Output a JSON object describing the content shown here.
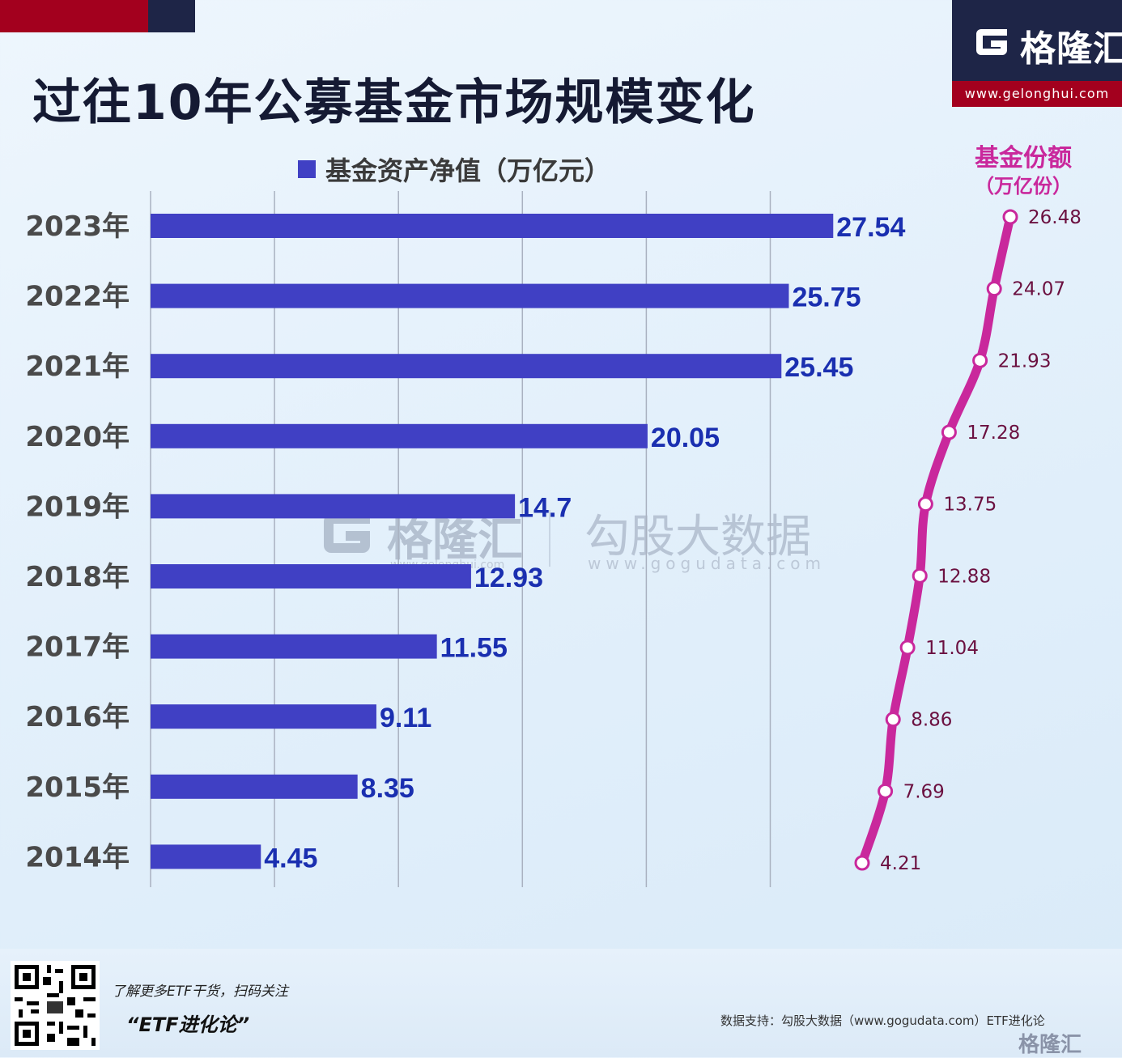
{
  "header": {
    "title": "过往10年公募基金市场规模变化",
    "brand": "格隆汇",
    "url": "www.gelonghui.com"
  },
  "watermark": {
    "brand": "格隆汇",
    "sub": "www.gelonghui.com",
    "brand2": "勾股大数据",
    "sub2": "www.gogudata.com"
  },
  "footer": {
    "cta": "了解更多ETF干货，扫码关注",
    "tag": "“ETF进化论”",
    "source": "数据支持：勾股大数据（www.gogudata.com）ETF进化论",
    "mini_logo": "格隆汇"
  },
  "chart_data": [
    {
      "type": "bar",
      "orientation": "horizontal",
      "legend": "基金资产净值（万亿元）",
      "categories": [
        "2023年",
        "2022年",
        "2021年",
        "2020年",
        "2019年",
        "2018年",
        "2017年",
        "2016年",
        "2015年",
        "2014年"
      ],
      "values": [
        27.54,
        25.75,
        25.45,
        20.05,
        14.7,
        12.93,
        11.55,
        9.11,
        8.35,
        4.45
      ],
      "value_labels": [
        "27.54",
        "25.75",
        "25.45",
        "20.05",
        "14.7",
        "12.93",
        "11.55",
        "9.11",
        "8.35",
        "4.45"
      ],
      "xlim": [
        0,
        30
      ],
      "grid": true,
      "color": "#4040c4",
      "label_color": "#1a2fb0"
    },
    {
      "type": "line",
      "title": "基金份额",
      "unit": "（万亿份）",
      "categories": [
        "2023年",
        "2022年",
        "2021年",
        "2020年",
        "2019年",
        "2018年",
        "2017年",
        "2016年",
        "2015年",
        "2014年"
      ],
      "values": [
        26.48,
        24.07,
        21.93,
        17.28,
        13.75,
        12.88,
        11.04,
        8.86,
        7.69,
        4.21
      ],
      "value_labels": [
        "26.48",
        "24.07",
        "21.93",
        "17.28",
        "13.75",
        "12.88",
        "11.04",
        "8.86",
        "7.69",
        "4.21"
      ],
      "color": "#c9289c",
      "label_color": "#6b1040"
    }
  ]
}
